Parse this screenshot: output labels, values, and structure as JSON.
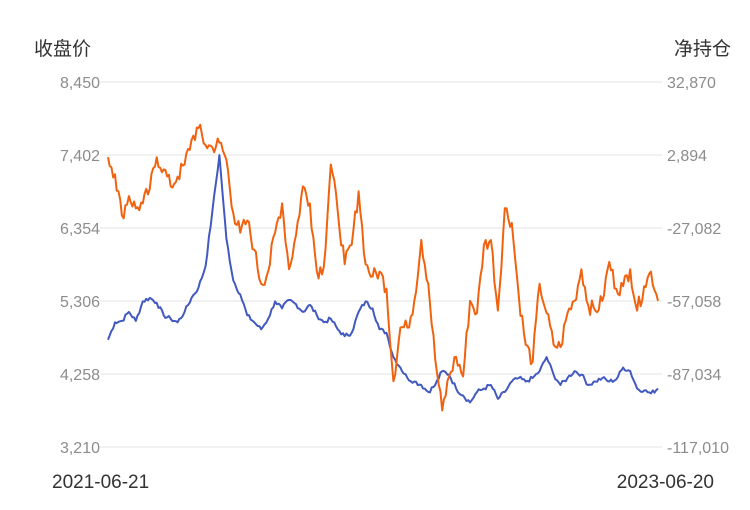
{
  "chart_data": {
    "type": "line",
    "ylabel_left": "收盘价",
    "ylabel_right": "净持仓",
    "x_start": "2021-06-21",
    "x_end": "2023-06-20",
    "left_axis": {
      "ticks": [
        "8,450",
        "7,402",
        "6,354",
        "5,306",
        "4,258",
        "3,210"
      ],
      "ylim": [
        3210,
        8450
      ]
    },
    "right_axis": {
      "ticks": [
        "32,870",
        "2,894",
        "-27,082",
        "-57,058",
        "-87,034",
        "-117,010"
      ],
      "ylim": [
        -117010,
        32870
      ]
    },
    "grid": true,
    "series": [
      {
        "axis": "left",
        "color": "#4159c0",
        "sample_interval_points": 6,
        "values": [
          4750,
          5000,
          5020,
          5150,
          5020,
          5300,
          5350,
          5280,
          5100,
          5050,
          5000,
          5150,
          5350,
          5500,
          5800,
          6600,
          7400,
          6200,
          5600,
          5400,
          5100,
          5000,
          4900,
          5050,
          5300,
          5200,
          5320,
          5260,
          5150,
          5250,
          5100,
          5000,
          5050,
          4900,
          4800,
          4850,
          5150,
          5300,
          5200,
          4900,
          4850,
          4500,
          4350,
          4200,
          4150,
          4100,
          4000,
          4100,
          4300,
          4250,
          4050,
          3950,
          3850,
          4000,
          4050,
          4100,
          3900,
          4000,
          4150,
          4200,
          4150,
          4200,
          4300,
          4500,
          4250,
          4100,
          4200,
          4300,
          4250,
          4100,
          4150,
          4200,
          4150,
          4180,
          4350,
          4300,
          4050,
          4020,
          3980,
          4050
        ]
      },
      {
        "axis": "right",
        "color": "#f0620f",
        "sample_interval_points": 6,
        "values": [
          2000,
          -5000,
          -22000,
          -14000,
          -19000,
          -17000,
          -11000,
          2000,
          -3000,
          -10000,
          -6000,
          -1000,
          9000,
          14000,
          7000,
          6000,
          8000,
          1000,
          -21000,
          -29000,
          -24000,
          -36000,
          -50000,
          -45000,
          -29000,
          -17000,
          -44000,
          -30000,
          -10000,
          -17000,
          -45000,
          -43000,
          -1000,
          -20000,
          -42000,
          -34000,
          -12000,
          -42000,
          -47000,
          -45000,
          -52000,
          -90000,
          -68000,
          -68000,
          -57000,
          -32000,
          -50000,
          -81000,
          -102000,
          -88000,
          -80000,
          -88000,
          -57000,
          -62000,
          -34000,
          -32000,
          -61000,
          -19000,
          -25000,
          -55000,
          -75000,
          -82000,
          -50000,
          -62000,
          -75000,
          -76000,
          -62000,
          -57000,
          -44000,
          -59000,
          -61000,
          -57000,
          -41000,
          -52000,
          -51000,
          -44000,
          -61000,
          -51000,
          -45000,
          -57000
        ]
      }
    ]
  }
}
